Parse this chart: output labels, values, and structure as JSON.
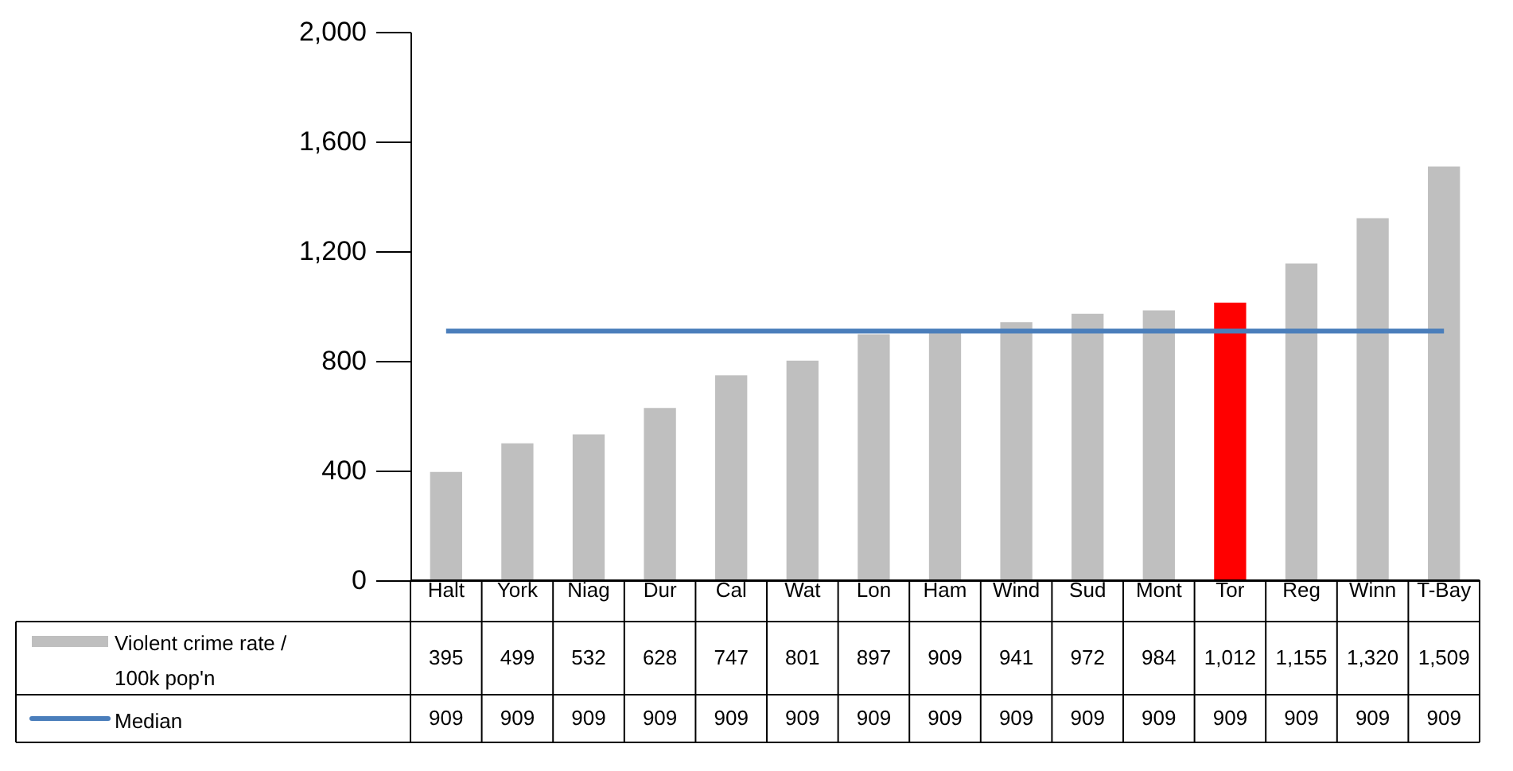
{
  "chart_data": {
    "type": "bar",
    "categories": [
      "Halt",
      "York",
      "Niag",
      "Dur",
      "Cal",
      "Wat",
      "Lon",
      "Ham",
      "Wind",
      "Sud",
      "Mont",
      "Tor",
      "Reg",
      "Winn",
      "T-Bay"
    ],
    "series": [
      {
        "name": "Violent crime rate / 100k pop'n",
        "colors": [
          "#bfbfbf",
          "#bfbfbf",
          "#bfbfbf",
          "#bfbfbf",
          "#bfbfbf",
          "#bfbfbf",
          "#bfbfbf",
          "#bfbfbf",
          "#bfbfbf",
          "#bfbfbf",
          "#bfbfbf",
          "#ff0000",
          "#bfbfbf",
          "#bfbfbf",
          "#bfbfbf"
        ],
        "color": "#bfbfbf",
        "values": [
          395,
          499,
          532,
          628,
          747,
          801,
          897,
          909,
          941,
          972,
          984,
          1012,
          1155,
          1320,
          1509
        ],
        "value_labels": [
          "395",
          "499",
          "532",
          "628",
          "747",
          "801",
          "897",
          "909",
          "941",
          "972",
          "984",
          "1,012",
          "1,155",
          "1,320",
          "1,509"
        ]
      },
      {
        "name": "Median",
        "type": "line",
        "color": "#4a7ebb",
        "values": [
          909,
          909,
          909,
          909,
          909,
          909,
          909,
          909,
          909,
          909,
          909,
          909,
          909,
          909,
          909
        ],
        "value_labels": [
          "909",
          "909",
          "909",
          "909",
          "909",
          "909",
          "909",
          "909",
          "909",
          "909",
          "909",
          "909",
          "909",
          "909",
          "909"
        ]
      }
    ],
    "ylim": [
      0,
      2000
    ],
    "yticks": [
      0,
      400,
      800,
      {
        "value": 1200,
        "label": "1,200"
      },
      {
        "value": 1600,
        "label": "1,600"
      },
      {
        "value": 2000,
        "label": "2,000"
      }
    ],
    "legend": "bottom",
    "grid": false
  }
}
